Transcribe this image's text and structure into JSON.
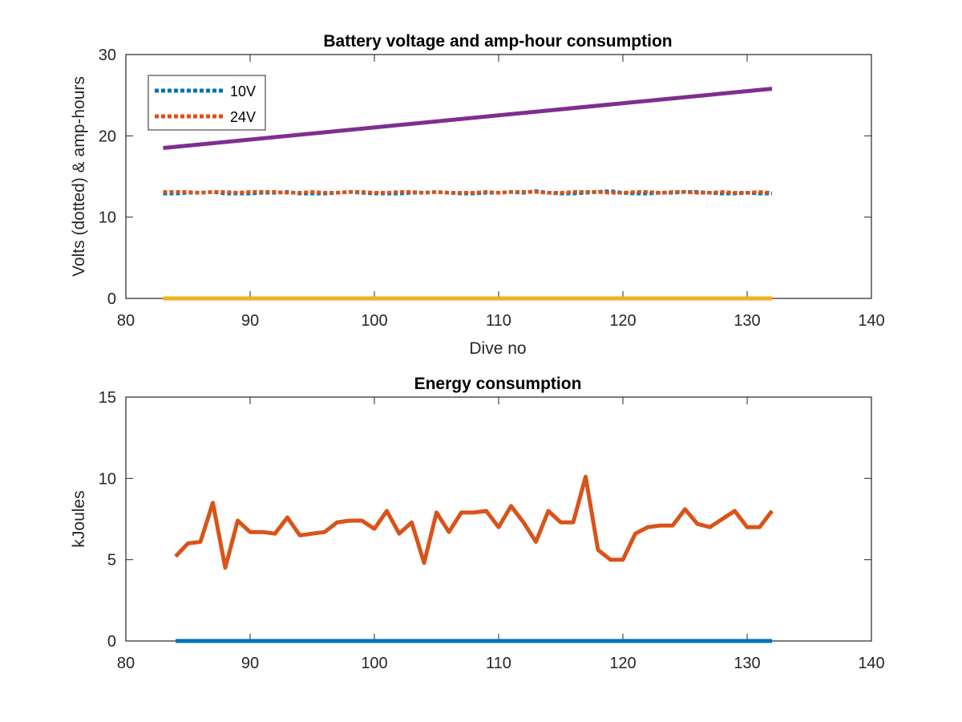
{
  "chart_data": [
    {
      "type": "line",
      "title": "Battery voltage and amp-hour consumption",
      "xlabel": "Dive no",
      "ylabel": "Volts (dotted) & amp-hours",
      "xlim": [
        80,
        140
      ],
      "ylim": [
        0,
        30
      ],
      "xticks": [
        "80",
        "90",
        "100",
        "110",
        "120",
        "130",
        "140"
      ],
      "yticks": [
        "0",
        "10",
        "20",
        "30"
      ],
      "legend_position": "top-left",
      "series": [
        {
          "name": "10V",
          "color": "#0072BD",
          "style": "dotted",
          "x": [
            83,
            84,
            85,
            86,
            87,
            88,
            89,
            90,
            91,
            92,
            93,
            94,
            95,
            96,
            97,
            98,
            99,
            100,
            101,
            102,
            103,
            104,
            105,
            106,
            107,
            108,
            109,
            110,
            111,
            112,
            113,
            114,
            115,
            116,
            117,
            118,
            119,
            120,
            121,
            122,
            123,
            124,
            125,
            126,
            127,
            128,
            129,
            130,
            131,
            132
          ],
          "values": [
            12.9,
            12.9,
            13.0,
            13.0,
            13.1,
            12.9,
            12.9,
            12.9,
            13.0,
            13.0,
            13.1,
            12.9,
            12.9,
            12.9,
            13.0,
            13.1,
            13.0,
            12.9,
            12.9,
            12.9,
            13.0,
            13.0,
            13.1,
            13.0,
            12.9,
            12.9,
            13.0,
            13.0,
            13.1,
            13.0,
            13.2,
            13.0,
            12.9,
            12.9,
            13.0,
            13.1,
            13.2,
            13.0,
            12.9,
            12.9,
            13.0,
            13.0,
            13.1,
            13.1,
            13.0,
            12.9,
            12.9,
            13.0,
            12.9,
            12.9
          ]
        },
        {
          "name": "24V",
          "color": "#D95319",
          "style": "dotted",
          "x": [
            83,
            84,
            85,
            86,
            87,
            88,
            89,
            90,
            91,
            92,
            93,
            94,
            95,
            96,
            97,
            98,
            99,
            100,
            101,
            102,
            103,
            104,
            105,
            106,
            107,
            108,
            109,
            110,
            111,
            112,
            113,
            114,
            115,
            116,
            117,
            118,
            119,
            120,
            121,
            122,
            123,
            124,
            125,
            126,
            127,
            128,
            129,
            130,
            131,
            132
          ],
          "values": [
            13.1,
            13.1,
            13.1,
            13.0,
            13.1,
            13.1,
            13.0,
            13.1,
            13.1,
            13.1,
            13.0,
            13.0,
            13.1,
            13.0,
            13.0,
            13.1,
            13.1,
            13.0,
            13.0,
            13.1,
            13.1,
            13.0,
            13.1,
            13.0,
            13.0,
            13.0,
            13.1,
            13.0,
            13.1,
            13.1,
            13.1,
            13.0,
            13.0,
            13.1,
            13.1,
            13.1,
            13.0,
            13.0,
            13.1,
            13.1,
            13.0,
            13.1,
            13.1,
            13.0,
            13.0,
            13.1,
            13.0,
            13.0,
            13.1,
            13.0
          ]
        },
        {
          "color": "#7E2F8E",
          "style": "solid",
          "x": [
            83,
            132
          ],
          "values": [
            18.5,
            25.8
          ]
        },
        {
          "color": "#EDB120",
          "style": "solid",
          "x": [
            83,
            132
          ],
          "values": [
            0,
            0
          ]
        }
      ]
    },
    {
      "type": "line",
      "title": "Energy consumption",
      "xlabel": "",
      "ylabel": "kJoules",
      "xlim": [
        80,
        140
      ],
      "ylim": [
        0,
        15
      ],
      "xticks": [
        "80",
        "90",
        "100",
        "110",
        "120",
        "130",
        "140"
      ],
      "yticks": [
        "0",
        "5",
        "10",
        "15"
      ],
      "series": [
        {
          "color": "#D95319",
          "style": "solid",
          "x": [
            84,
            85,
            86,
            87,
            88,
            89,
            90,
            91,
            92,
            93,
            94,
            95,
            96,
            97,
            98,
            99,
            100,
            101,
            102,
            103,
            104,
            105,
            106,
            107,
            108,
            109,
            110,
            111,
            112,
            113,
            114,
            115,
            116,
            117,
            118,
            119,
            120,
            121,
            122,
            123,
            124,
            125,
            126,
            127,
            128,
            129,
            130,
            131,
            132
          ],
          "values": [
            5.2,
            6.0,
            6.1,
            8.5,
            4.5,
            7.4,
            6.7,
            6.7,
            6.6,
            7.6,
            6.5,
            6.6,
            6.7,
            7.3,
            7.4,
            7.4,
            6.9,
            8.0,
            6.6,
            7.3,
            4.8,
            7.9,
            6.7,
            7.9,
            7.9,
            8.0,
            7.0,
            8.3,
            7.3,
            6.1,
            8.0,
            7.3,
            7.3,
            10.1,
            5.6,
            5.0,
            5.0,
            6.6,
            7.0,
            7.1,
            7.1,
            8.1,
            7.2,
            7.0,
            7.5,
            8.0,
            7.0,
            7.0,
            8.0
          ]
        },
        {
          "color": "#0072BD",
          "style": "solid",
          "x": [
            84,
            132
          ],
          "values": [
            0,
            0
          ]
        }
      ]
    }
  ]
}
